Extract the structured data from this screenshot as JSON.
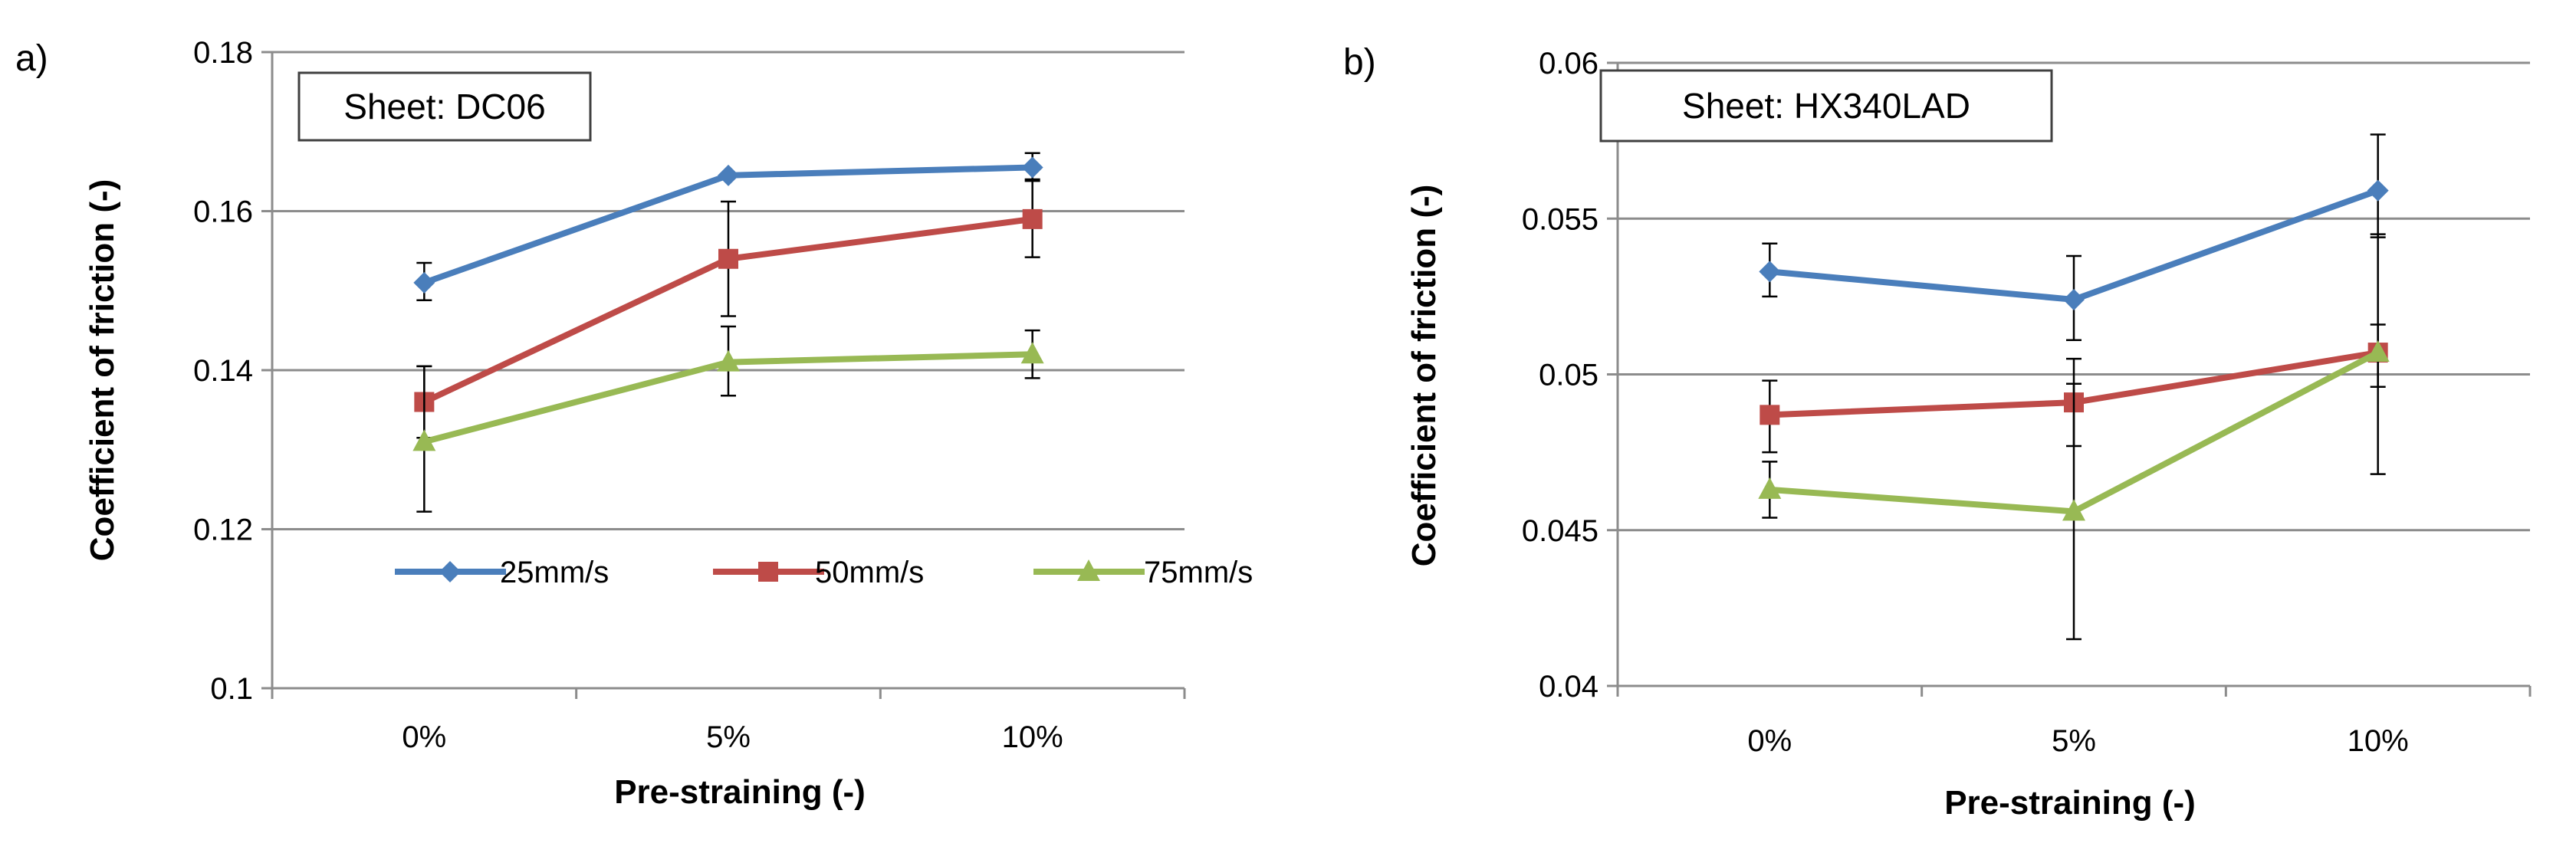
{
  "chart_data": [
    {
      "type": "line",
      "panel_label": "a)",
      "annotation": "Sheet: DC06",
      "categories": [
        "0%",
        "5%",
        "10%"
      ],
      "xlabel": "Pre-straining (-)",
      "ylabel": "Coefficient of friction (-)",
      "ylim": [
        0.1,
        0.18
      ],
      "yticks": [
        0.1,
        0.12,
        0.14,
        0.16,
        0.18
      ],
      "ytick_labels": [
        "0.1",
        "0.12",
        "0.14",
        "0.16",
        "0.18"
      ],
      "grid": true,
      "legend": "bottom-inside",
      "series": [
        {
          "name": "25mm/s",
          "color": "#4a7ebb",
          "marker": "diamond",
          "values": [
            0.151,
            0.1645,
            0.1655
          ],
          "err_low": [
            0.0022,
            0.0,
            0.0015
          ],
          "err_high": [
            0.0025,
            0.0,
            0.0018
          ]
        },
        {
          "name": "50mm/s",
          "color": "#be4b48",
          "marker": "square",
          "values": [
            0.136,
            0.154,
            0.159
          ],
          "err_low": [
            0.0045,
            0.0072,
            0.0048
          ],
          "err_high": [
            0.0045,
            0.0072,
            0.0048
          ]
        },
        {
          "name": "75mm/s",
          "color": "#98b954",
          "marker": "triangle",
          "values": [
            0.131,
            0.141,
            0.142
          ],
          "err_low": [
            0.0088,
            0.0042,
            0.003
          ],
          "err_high": [
            0.0095,
            0.0045,
            0.003
          ]
        }
      ]
    },
    {
      "type": "line",
      "panel_label": "b)",
      "annotation": "Sheet: HX340LAD",
      "categories": [
        "0%",
        "5%",
        "10%"
      ],
      "xlabel": "Pre-straining (-)",
      "ylabel": "Coefficient of friction (-)",
      "ylim": [
        0.04,
        0.06
      ],
      "yticks": [
        0.04,
        0.045,
        0.05,
        0.055,
        0.06
      ],
      "ytick_labels": [
        "0.04",
        "0.045",
        "0.05",
        "0.055",
        "0.06"
      ],
      "grid": true,
      "legend": "none",
      "series": [
        {
          "name": "25mm/s",
          "color": "#4a7ebb",
          "marker": "diamond",
          "values": [
            0.0533,
            0.0524,
            0.0559
          ],
          "err_low": [
            0.0008,
            0.0013,
            0.0015
          ],
          "err_high": [
            0.0009,
            0.0014,
            0.0018
          ]
        },
        {
          "name": "50mm/s",
          "color": "#be4b48",
          "marker": "square",
          "values": [
            0.0487,
            0.0491,
            0.0507
          ],
          "err_low": [
            0.0012,
            0.0014,
            0.0039
          ],
          "err_high": [
            0.0011,
            0.0014,
            0.0038
          ]
        },
        {
          "name": "75mm/s",
          "color": "#98b954",
          "marker": "triangle",
          "values": [
            0.0463,
            0.0456,
            0.0507
          ],
          "err_low": [
            0.0009,
            0.0041,
            0.0011
          ],
          "err_high": [
            0.0009,
            0.0041,
            0.0009
          ]
        }
      ]
    }
  ]
}
